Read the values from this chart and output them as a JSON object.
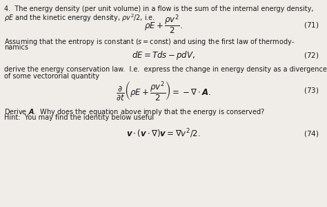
{
  "background_color": "#f0ede8",
  "text_color": "#1a1a1a",
  "figsize": [
    4.74,
    3.01
  ],
  "dpi": 100
}
